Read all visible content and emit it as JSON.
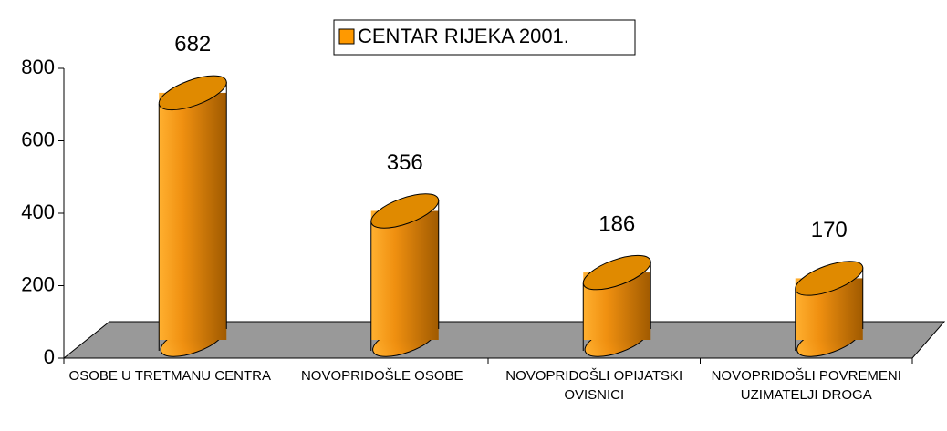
{
  "chart_data": {
    "type": "bar3d",
    "categories": [
      "OSOBE U TRETMANU CENTRA",
      "NOVOPRIDOŠLE OSOBE",
      "NOVOPRIDOŠLI OPIJATSKI OVISNICI",
      "NOVOPRIDOŠLI POVREMENI UZIMATELJI DROGA"
    ],
    "series": [
      {
        "name": "CENTAR RIJEKA 2001.",
        "color": "#ff9900",
        "values": [
          682,
          356,
          186,
          170
        ]
      }
    ],
    "ylim": [
      0,
      800
    ],
    "yticks": [
      0,
      200,
      400,
      600,
      800
    ],
    "legend": "top"
  }
}
